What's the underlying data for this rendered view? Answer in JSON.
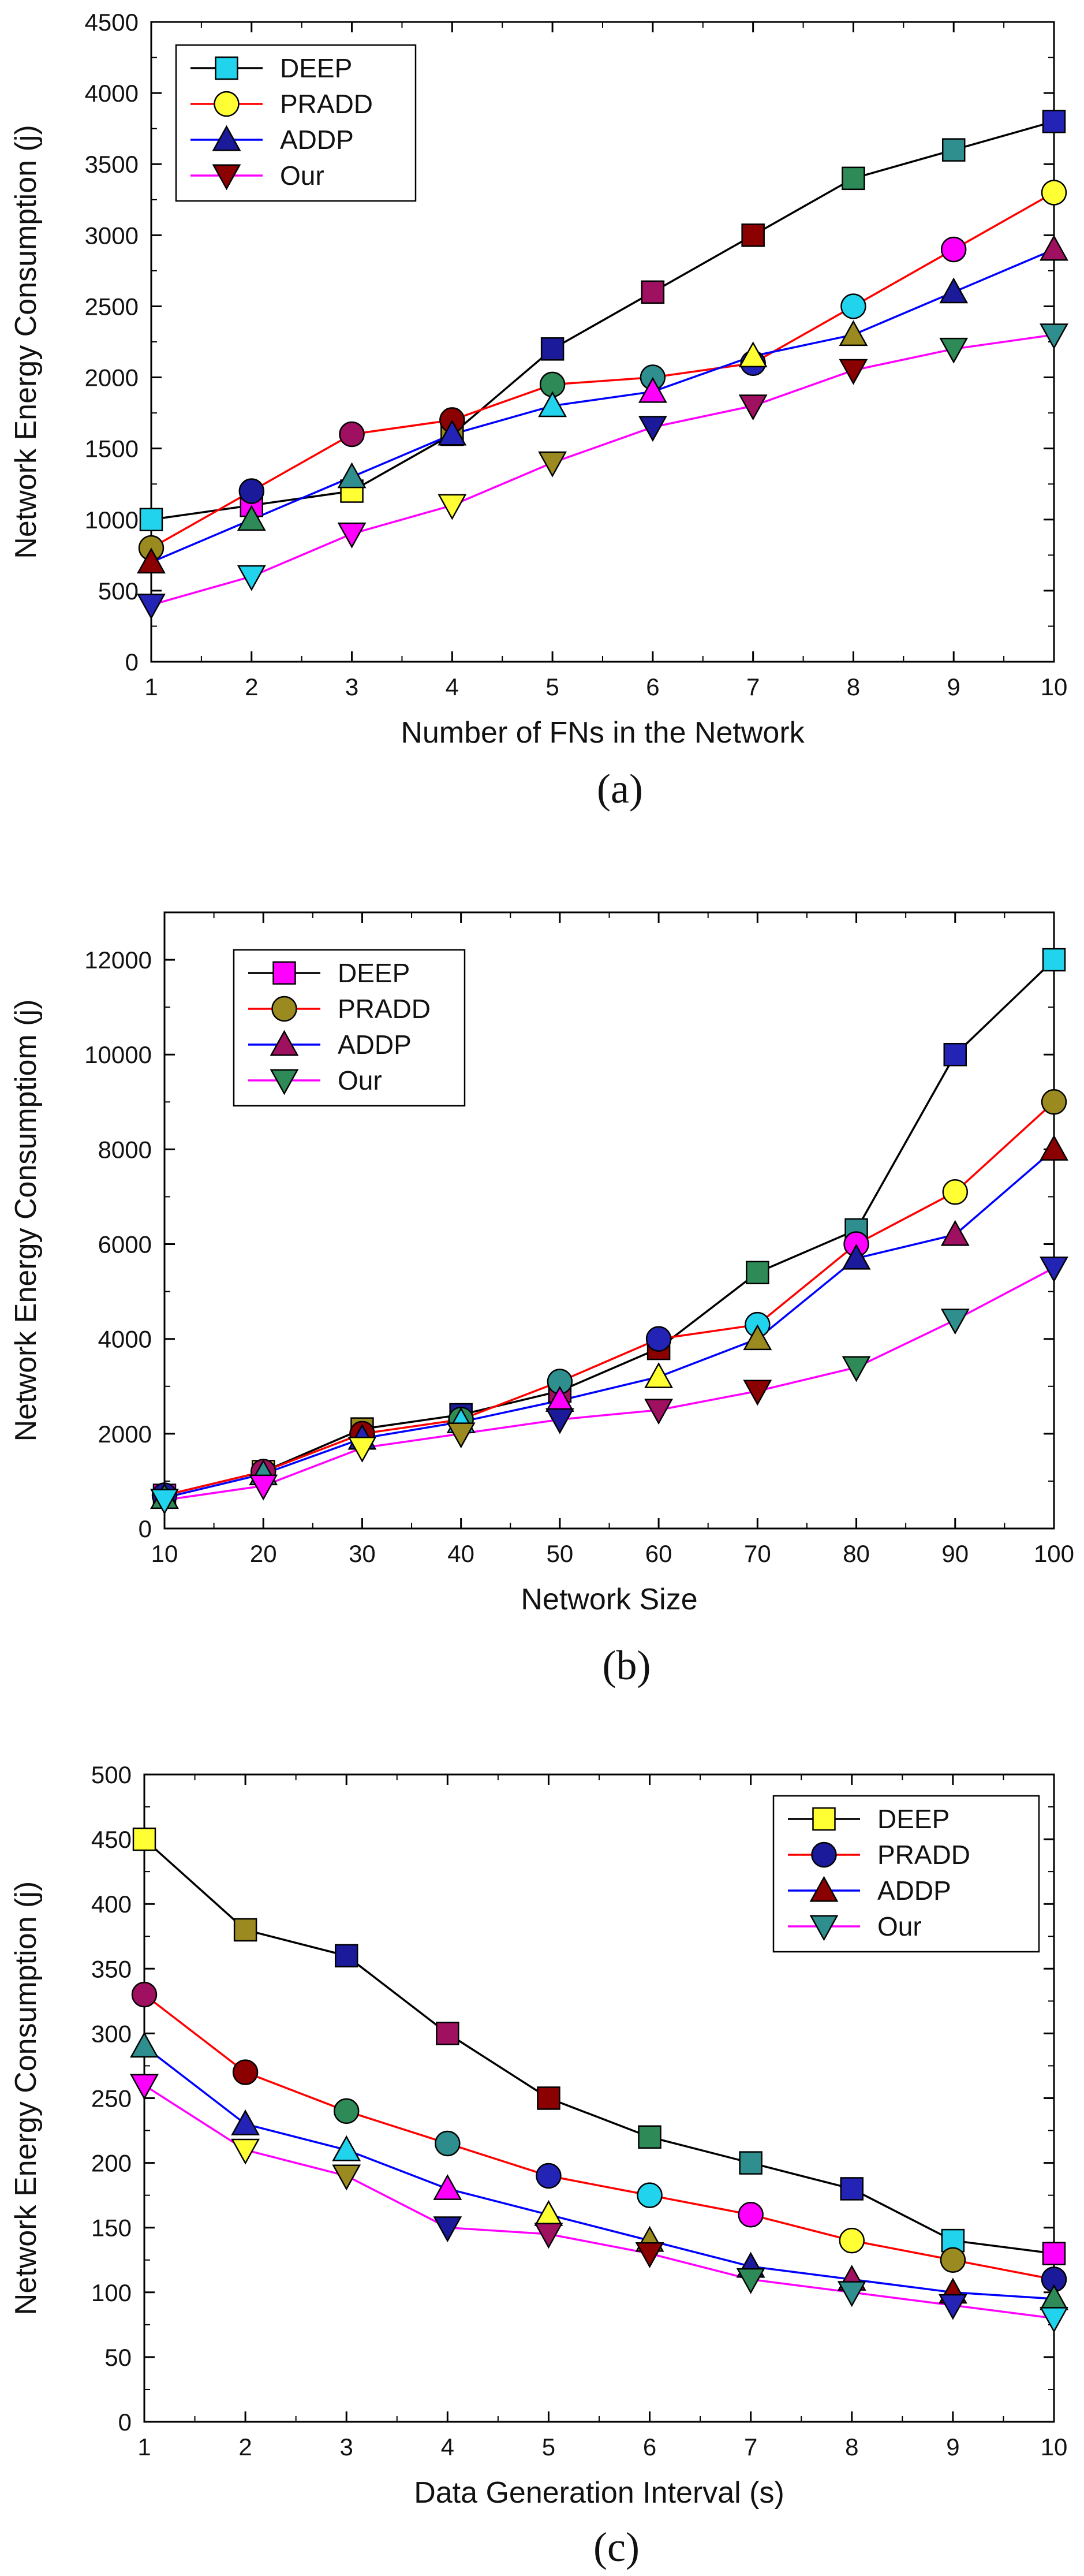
{
  "chart_data": [
    {
      "type": "line",
      "panel": "(a)",
      "title": "",
      "xlabel": "Number of FNs in the Network",
      "ylabel": "Network Energy Consumption (j)",
      "xlim": [
        1,
        10
      ],
      "ylim": [
        0,
        4500
      ],
      "xticks": [
        1,
        2,
        3,
        4,
        5,
        6,
        7,
        8,
        9,
        10
      ],
      "yticks": [
        0,
        500,
        1000,
        1500,
        2000,
        2500,
        3000,
        3500,
        4000,
        4500
      ],
      "x": [
        1,
        2,
        3,
        4,
        5,
        6,
        7,
        8,
        9,
        10
      ],
      "legend_position": "top-left",
      "series": [
        {
          "name": "DEEP",
          "marker": "square",
          "color": "#000000",
          "values": [
            1000,
            1100,
            1200,
            1600,
            2200,
            2600,
            3000,
            3400,
            3600,
            3800
          ]
        },
        {
          "name": "PRADD",
          "marker": "circle",
          "color": "#ff0000",
          "values": [
            800,
            1200,
            1600,
            1700,
            1950,
            2000,
            2100,
            2500,
            2900,
            3300
          ]
        },
        {
          "name": "ADDP",
          "marker": "triangle-up",
          "color": "#0000ff",
          "values": [
            700,
            1000,
            1300,
            1600,
            1800,
            1900,
            2150,
            2300,
            2600,
            2900
          ]
        },
        {
          "name": "Our",
          "marker": "triangle-down",
          "color": "#ff00ff",
          "values": [
            400,
            600,
            900,
            1100,
            1400,
            1650,
            1800,
            2050,
            2200,
            2300
          ]
        }
      ]
    },
    {
      "type": "line",
      "panel": "(b)",
      "title": "",
      "xlabel": "Network Size",
      "ylabel": "Network Energy Consumptiom (j)",
      "xlim": [
        10,
        100
      ],
      "ylim": [
        0,
        13000
      ],
      "xticks": [
        10,
        20,
        30,
        40,
        50,
        60,
        70,
        80,
        90,
        100
      ],
      "yticks": [
        0,
        2000,
        4000,
        6000,
        8000,
        10000,
        12000
      ],
      "x": [
        10,
        20,
        30,
        40,
        50,
        60,
        70,
        80,
        90,
        100
      ],
      "legend_position": "top-left",
      "series": [
        {
          "name": "DEEP",
          "marker": "square",
          "color": "#000000",
          "values": [
            700,
            1200,
            2100,
            2400,
            2900,
            3800,
            5400,
            6300,
            10000,
            12000
          ]
        },
        {
          "name": "PRADD",
          "marker": "circle",
          "color": "#ff0000",
          "values": [
            700,
            1200,
            2000,
            2300,
            3100,
            4000,
            4300,
            6000,
            7100,
            9000
          ]
        },
        {
          "name": "ADDP",
          "marker": "triangle-up",
          "color": "#0000ff",
          "values": [
            650,
            1150,
            1900,
            2250,
            2700,
            3200,
            4000,
            5700,
            6200,
            8000
          ]
        },
        {
          "name": "Our",
          "marker": "triangle-down",
          "color": "#ff00ff",
          "values": [
            600,
            900,
            1700,
            2000,
            2300,
            2500,
            2900,
            3400,
            4400,
            5500
          ]
        }
      ]
    },
    {
      "type": "line",
      "panel": "(c)",
      "title": "",
      "xlabel": "Data Generation Interval (s)",
      "ylabel": "Network Energy Consumption (j)",
      "xlim": [
        1,
        10
      ],
      "ylim": [
        0,
        500
      ],
      "xticks": [
        1,
        2,
        3,
        4,
        5,
        6,
        7,
        8,
        9,
        10
      ],
      "yticks": [
        0,
        50,
        100,
        150,
        200,
        250,
        300,
        350,
        400,
        450,
        500
      ],
      "x": [
        1,
        2,
        3,
        4,
        5,
        6,
        7,
        8,
        9,
        10
      ],
      "legend_position": "top-right",
      "series": [
        {
          "name": "DEEP",
          "marker": "square",
          "color": "#000000",
          "values": [
            450,
            380,
            360,
            300,
            250,
            220,
            200,
            180,
            140,
            130
          ]
        },
        {
          "name": "PRADD",
          "marker": "circle",
          "color": "#ff0000",
          "values": [
            330,
            270,
            240,
            215,
            190,
            175,
            160,
            140,
            125,
            110
          ]
        },
        {
          "name": "ADDP",
          "marker": "triangle-up",
          "color": "#0000ff",
          "values": [
            290,
            230,
            210,
            180,
            160,
            140,
            120,
            110,
            100,
            95
          ]
        },
        {
          "name": "Our",
          "marker": "triangle-down",
          "color": "#ff00ff",
          "values": [
            260,
            210,
            190,
            150,
            145,
            130,
            110,
            100,
            90,
            80
          ]
        }
      ]
    }
  ],
  "marker_fill_palette": [
    "#22d3ee",
    "#ff00ff",
    "#ffff33",
    "#9a8a20",
    "#1a1a9a",
    "#a01060",
    "#8b0000",
    "#2e8b57",
    "#2f8f8f",
    "#2323b5"
  ],
  "captions": {
    "a": "(a)",
    "b": "(b)",
    "c": "(c)"
  }
}
